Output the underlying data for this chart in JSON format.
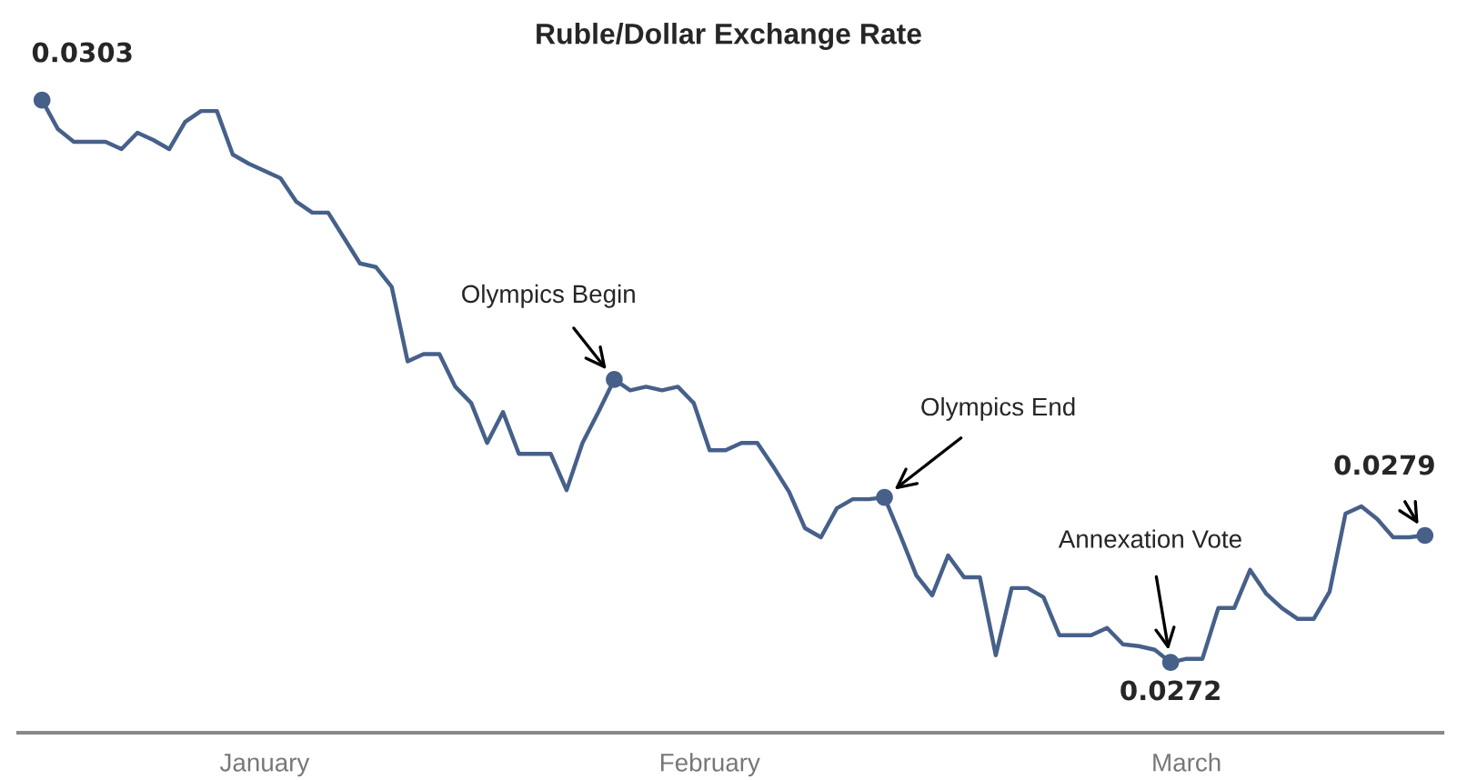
{
  "chart_data": {
    "type": "line",
    "title": "Ruble/Dollar Exchange Rate",
    "categories": [
      null,
      null,
      null,
      null,
      null,
      null,
      null,
      null,
      null,
      null,
      null,
      null,
      null,
      null,
      "January",
      null,
      null,
      null,
      null,
      null,
      null,
      null,
      null,
      null,
      null,
      null,
      null,
      null,
      null,
      null,
      null,
      null,
      null,
      null,
      null,
      null,
      null,
      null,
      null,
      null,
      null,
      null,
      "February",
      null,
      null,
      null,
      null,
      null,
      null,
      null,
      null,
      null,
      null,
      null,
      null,
      null,
      null,
      null,
      null,
      null,
      null,
      null,
      null,
      null,
      null,
      null,
      null,
      null,
      null,
      null,
      null,
      null,
      "March",
      null,
      null,
      null,
      null,
      null,
      null,
      null,
      null,
      null,
      null,
      null,
      null,
      null,
      null,
      null
    ],
    "tick_labels": "x",
    "grid": false,
    "legend": false,
    "line_style": "solid",
    "series": [
      {
        "color": "#46608a",
        "marker": "none",
        "values": [
          0.0303,
          0.03014,
          0.03007,
          0.03007,
          0.03007,
          0.03003,
          0.03012,
          0.03008,
          0.03003,
          0.03018,
          0.03024,
          0.03024,
          0.03,
          0.02995,
          0.02991,
          0.02987,
          0.02974,
          0.02968,
          0.02968,
          0.02954,
          0.0294,
          0.02938,
          0.02927,
          0.02886,
          0.0289,
          0.0289,
          0.02872,
          0.02863,
          0.02841,
          0.02858,
          0.02835,
          0.02835,
          0.02835,
          0.02815,
          0.02841,
          0.02858,
          0.02876,
          0.0287,
          0.02872,
          0.0287,
          0.02872,
          0.02863,
          0.02837,
          0.02837,
          0.02841,
          0.02841,
          0.02828,
          0.02814,
          0.02794,
          0.02789,
          0.02805,
          0.0281,
          0.0281,
          0.02811,
          0.0279,
          0.02768,
          0.02757,
          0.02779,
          0.02767,
          0.02767,
          0.02724,
          0.02761,
          0.02761,
          0.02756,
          0.02735,
          0.02735,
          0.02735,
          0.02739,
          0.0273,
          0.02729,
          0.02727,
          0.0272,
          0.02722,
          0.02722,
          0.0275,
          0.0275,
          0.02771,
          0.02758,
          0.0275,
          0.02744,
          0.02744,
          0.02759,
          0.02802,
          0.02806,
          0.02799,
          0.02789,
          0.02789,
          0.0279
        ]
      },
      {
        "type": "scatter",
        "color": "#46608a",
        "marker": "circle",
        "values": [
          0.0303,
          null,
          null,
          null,
          null,
          null,
          null,
          null,
          null,
          null,
          null,
          null,
          null,
          null,
          null,
          null,
          null,
          null,
          null,
          null,
          null,
          null,
          null,
          null,
          null,
          null,
          null,
          null,
          null,
          null,
          null,
          null,
          null,
          null,
          null,
          null,
          0.02876,
          null,
          null,
          null,
          null,
          null,
          null,
          null,
          null,
          null,
          null,
          null,
          null,
          null,
          null,
          null,
          null,
          0.02811,
          null,
          null,
          null,
          null,
          null,
          null,
          null,
          null,
          null,
          null,
          null,
          null,
          null,
          null,
          null,
          null,
          null,
          0.0272,
          null,
          null,
          null,
          null,
          null,
          null,
          null,
          null,
          null,
          null,
          null,
          null,
          null,
          null,
          null,
          0.0279
        ],
        "value_labels": [
          "0.0303",
          null,
          null,
          null,
          null,
          null,
          null,
          null,
          null,
          null,
          null,
          null,
          null,
          null,
          null,
          null,
          null,
          null,
          null,
          null,
          null,
          null,
          null,
          null,
          null,
          null,
          null,
          null,
          null,
          null,
          null,
          null,
          null,
          null,
          null,
          null,
          null,
          null,
          null,
          null,
          null,
          null,
          null,
          null,
          null,
          null,
          null,
          null,
          null,
          null,
          null,
          null,
          null,
          null,
          null,
          null,
          null,
          null,
          null,
          null,
          null,
          null,
          null,
          null,
          null,
          null,
          null,
          null,
          null,
          null,
          null,
          "0.0272",
          null,
          null,
          null,
          null,
          null,
          null,
          null,
          null,
          null,
          null,
          null,
          null,
          null,
          null,
          null,
          "0.0279"
        ]
      }
    ],
    "annotations": [
      "Olympics Begin",
      "Olympics End",
      "Annexation Vote"
    ]
  }
}
